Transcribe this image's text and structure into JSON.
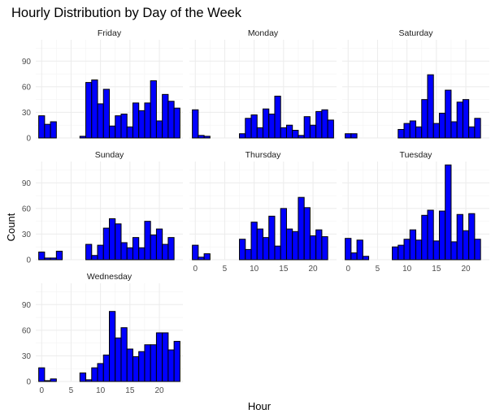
{
  "chart_data": {
    "type": "bar",
    "title": "Hourly Distribution by Day of the Week",
    "xlabel": "Hour",
    "ylabel": "Count",
    "x_ticks": [
      0,
      5,
      10,
      15,
      20
    ],
    "y_ticks": [
      0,
      30,
      60,
      90
    ],
    "xlim": [
      -1,
      24
    ],
    "ylim": [
      0,
      115
    ],
    "grid": true,
    "bar_color": "#0000ff",
    "bar_outline": "#000000",
    "hours": [
      0,
      1,
      2,
      3,
      4,
      5,
      6,
      7,
      8,
      9,
      10,
      11,
      12,
      13,
      14,
      15,
      16,
      17,
      18,
      19,
      20,
      21,
      22,
      23
    ],
    "panels": [
      {
        "name": "Friday",
        "values": [
          26,
          16,
          19,
          0,
          0,
          0,
          0,
          2,
          65,
          68,
          40,
          57,
          14,
          26,
          28,
          13,
          41,
          32,
          41,
          67,
          20,
          51,
          43,
          35
        ]
      },
      {
        "name": "Monday",
        "values": [
          33,
          3,
          2,
          0,
          0,
          0,
          0,
          0,
          5,
          23,
          27,
          12,
          34,
          28,
          49,
          12,
          15,
          9,
          3,
          25,
          15,
          31,
          33,
          21
        ]
      },
      {
        "name": "Saturday",
        "values": [
          5,
          5,
          0,
          0,
          0,
          0,
          0,
          0,
          0,
          10,
          17,
          20,
          13,
          45,
          74,
          17,
          29,
          56,
          19,
          42,
          45,
          13,
          23,
          0
        ]
      },
      {
        "name": "Sunday",
        "values": [
          9,
          2,
          2,
          10,
          0,
          0,
          0,
          0,
          18,
          5,
          17,
          37,
          48,
          42,
          20,
          14,
          26,
          14,
          45,
          29,
          36,
          18,
          26,
          0
        ]
      },
      {
        "name": "Thursday",
        "values": [
          17,
          3,
          7,
          0,
          0,
          0,
          0,
          0,
          24,
          12,
          44,
          36,
          26,
          51,
          16,
          60,
          36,
          33,
          73,
          61,
          28,
          35,
          27,
          0
        ]
      },
      {
        "name": "Tuesday",
        "values": [
          25,
          8,
          23,
          4,
          0,
          0,
          0,
          0,
          15,
          17,
          24,
          35,
          23,
          52,
          58,
          22,
          57,
          111,
          21,
          53,
          34,
          54,
          24,
          0
        ]
      },
      {
        "name": "Wednesday",
        "values": [
          16,
          1,
          3,
          0,
          0,
          0,
          0,
          10,
          2,
          16,
          21,
          31,
          82,
          51,
          63,
          38,
          29,
          35,
          43,
          43,
          57,
          57,
          37,
          47
        ]
      }
    ]
  }
}
